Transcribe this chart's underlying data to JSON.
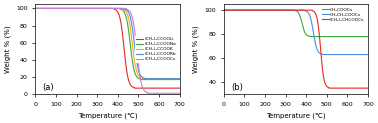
{
  "panel_a": {
    "title": "(a)",
    "xlabel": "Temperature (℃)",
    "ylabel": "Weight % (%)",
    "xlim": [
      0,
      700
    ],
    "ylim": [
      0,
      105
    ],
    "yticks": [
      0,
      20,
      40,
      60,
      80,
      100
    ],
    "xticks": [
      0,
      100,
      200,
      300,
      400,
      500,
      600,
      700
    ],
    "series": [
      {
        "label": "(CH₃)₃CCOOLi",
        "color": "#e8291c",
        "start_drop": 380,
        "end_drop": 480,
        "final_val": 7
      },
      {
        "label": "(CH₃)₃CCOONa",
        "color": "#3aaa35",
        "start_drop": 410,
        "end_drop": 510,
        "final_val": 17
      },
      {
        "label": "(CH₃)₃CCOOK",
        "color": "#f5a623",
        "start_drop": 420,
        "end_drop": 520,
        "final_val": 18
      },
      {
        "label": "(CH₃)₃CCOORb",
        "color": "#4a90d9",
        "start_drop": 430,
        "end_drop": 530,
        "final_val": 18
      },
      {
        "label": "(CH₃)₃CCOOCs",
        "color": "#c87dd8",
        "start_drop": 440,
        "end_drop": 545,
        "final_val": 1
      }
    ]
  },
  "panel_b": {
    "title": "(b)",
    "xlabel": "Temperature (℃)",
    "ylabel": "Weight % (%)",
    "xlim": [
      0,
      700
    ],
    "ylim": [
      30,
      105
    ],
    "yticks": [
      40,
      60,
      80,
      100
    ],
    "xticks": [
      0,
      100,
      200,
      300,
      400,
      500,
      600,
      700
    ],
    "series": [
      {
        "label": "CH₃COOCs",
        "color": "#3aaa35",
        "start_drop": 340,
        "end_drop": 420,
        "final_val": 78
      },
      {
        "label": "CH₃CH₂COOCs",
        "color": "#4a90d9",
        "start_drop": 390,
        "end_drop": 480,
        "final_val": 63
      },
      {
        "label": "(CH₃)₂CHCOOCs",
        "color": "#e8291c",
        "start_drop": 430,
        "end_drop": 510,
        "final_val": 35
      }
    ]
  }
}
